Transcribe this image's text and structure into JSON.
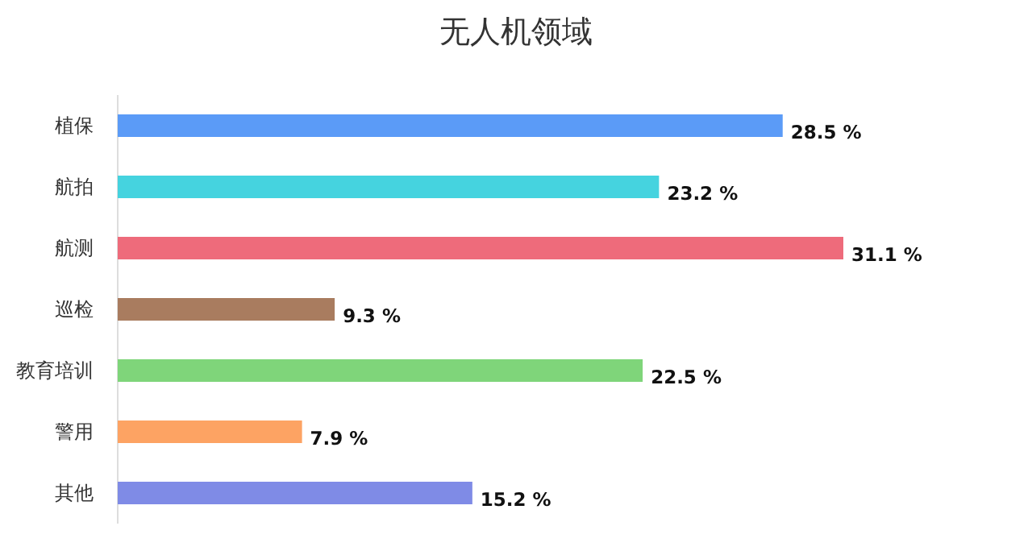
{
  "chart_data": {
    "type": "bar",
    "orientation": "horizontal",
    "title": "无人机领域",
    "categories": [
      "植保",
      "航拍",
      "航测",
      "巡检",
      "教育培训",
      "警用",
      "其他"
    ],
    "values": [
      28.5,
      23.2,
      31.1,
      9.3,
      22.5,
      7.9,
      15.2
    ],
    "value_labels": [
      "28.5 %",
      "23.2 %",
      "31.1 %",
      "9.3 %",
      "22.5 %",
      "7.9 %",
      "15.2 %"
    ],
    "colors": [
      "#5b9bf7",
      "#45d3df",
      "#ee6b7b",
      "#a97c5f",
      "#7fd57a",
      "#fda363",
      "#7f8be6"
    ]
  }
}
